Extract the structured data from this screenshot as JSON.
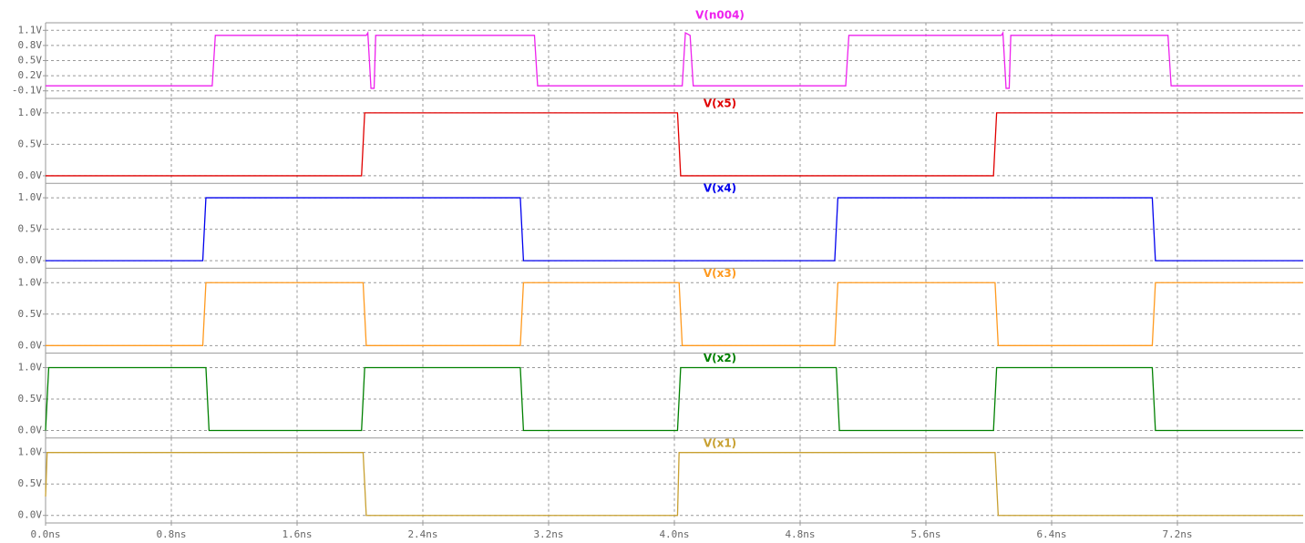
{
  "chart_data": [
    {
      "type": "line",
      "title": "V(n004)",
      "ylim": [
        -0.25,
        1.25
      ],
      "yticks": [
        {
          "value": 1.1,
          "label": "1.1V"
        },
        {
          "value": 0.8,
          "label": "0.8V"
        },
        {
          "value": 0.5,
          "label": "0.5V"
        },
        {
          "value": 0.2,
          "label": "0.2V"
        },
        {
          "value": -0.1,
          "label": "-0.1V"
        }
      ],
      "grid": true,
      "series": [
        {
          "name": "V(n004)",
          "color": "#ee22ee",
          "x": [
            0,
            1.06,
            1.08,
            2.04,
            2.05,
            2.07,
            2.09,
            2.1,
            3.11,
            3.13,
            4.05,
            4.07,
            4.1,
            4.12,
            5.09,
            5.11,
            6.08,
            6.09,
            6.11,
            6.13,
            6.14,
            7.14,
            7.16,
            8.0
          ],
          "values": [
            0,
            0,
            1,
            1,
            1.05,
            -0.05,
            -0.05,
            1,
            1,
            0,
            0,
            1.05,
            1,
            0,
            0,
            1,
            1,
            1.05,
            -0.05,
            -0.05,
            1,
            1,
            0,
            0
          ]
        }
      ]
    },
    {
      "type": "line",
      "title": "V(x5)",
      "ylim": [
        -0.12,
        1.23
      ],
      "yticks": [
        {
          "value": 1,
          "label": "1.0V"
        },
        {
          "value": 0.5,
          "label": "0.5V"
        },
        {
          "value": 0,
          "label": "0.0V"
        }
      ],
      "grid": true,
      "series": [
        {
          "name": "V(x5)",
          "color": "#e00000",
          "x": [
            0,
            2.01,
            2.03,
            4.02,
            4.04,
            6.03,
            6.05,
            8.0
          ],
          "values": [
            0,
            0,
            1,
            1,
            0,
            0,
            1,
            1
          ]
        }
      ]
    },
    {
      "type": "line",
      "title": "V(x4)",
      "ylim": [
        -0.12,
        1.23
      ],
      "yticks": [
        {
          "value": 1,
          "label": "1.0V"
        },
        {
          "value": 0.5,
          "label": "0.5V"
        },
        {
          "value": 0,
          "label": "0.0V"
        }
      ],
      "grid": true,
      "series": [
        {
          "name": "V(x4)",
          "color": "#0000ee",
          "x": [
            0,
            1.0,
            1.02,
            3.02,
            3.04,
            5.02,
            5.04,
            7.04,
            7.06,
            8.0
          ],
          "values": [
            0,
            0,
            1,
            1,
            0,
            0,
            1,
            1,
            0,
            0
          ]
        }
      ]
    },
    {
      "type": "line",
      "title": "V(x3)",
      "ylim": [
        -0.12,
        1.23
      ],
      "yticks": [
        {
          "value": 1,
          "label": "1.0V"
        },
        {
          "value": 0.5,
          "label": "0.5V"
        },
        {
          "value": 0,
          "label": "0.0V"
        }
      ],
      "grid": true,
      "series": [
        {
          "name": "V(x3)",
          "color": "#ff9a1f",
          "x": [
            0,
            1.0,
            1.02,
            2.02,
            2.04,
            3.02,
            3.04,
            4.03,
            4.05,
            5.02,
            5.04,
            6.04,
            6.06,
            7.04,
            7.06,
            8.0
          ],
          "values": [
            0,
            0,
            1,
            1,
            0,
            0,
            1,
            1,
            0,
            0,
            1,
            1,
            0,
            0,
            1,
            1
          ]
        }
      ]
    },
    {
      "type": "line",
      "title": "V(x2)",
      "ylim": [
        -0.12,
        1.23
      ],
      "yticks": [
        {
          "value": 1,
          "label": "1.0V"
        },
        {
          "value": 0.5,
          "label": "0.5V"
        },
        {
          "value": 0,
          "label": "0.0V"
        }
      ],
      "grid": true,
      "series": [
        {
          "name": "V(x2)",
          "color": "#008000",
          "x": [
            0,
            0.02,
            1.02,
            1.04,
            2.01,
            2.03,
            3.02,
            3.04,
            4.02,
            4.04,
            5.03,
            5.05,
            6.03,
            6.05,
            7.04,
            7.06,
            8.0
          ],
          "values": [
            0,
            1,
            1,
            0,
            0,
            1,
            1,
            0,
            0,
            1,
            1,
            0,
            0,
            1,
            1,
            0,
            0
          ]
        }
      ]
    },
    {
      "type": "line",
      "title": "V(x1)",
      "ylim": [
        -0.12,
        1.23
      ],
      "yticks": [
        {
          "value": 1,
          "label": "1.0V"
        },
        {
          "value": 0.5,
          "label": "0.5V"
        },
        {
          "value": 0,
          "label": "0.0V"
        }
      ],
      "grid": true,
      "xlim": [
        0,
        8.0
      ],
      "xticks": [
        {
          "value": 0,
          "label": "0.0ns"
        },
        {
          "value": 0.8,
          "label": "0.8ns"
        },
        {
          "value": 1.6,
          "label": "1.6ns"
        },
        {
          "value": 2.4,
          "label": "2.4ns"
        },
        {
          "value": 3.2,
          "label": "3.2ns"
        },
        {
          "value": 4.0,
          "label": "4.0ns"
        },
        {
          "value": 4.8,
          "label": "4.8ns"
        },
        {
          "value": 5.6,
          "label": "5.6ns"
        },
        {
          "value": 6.4,
          "label": "6.4ns"
        },
        {
          "value": 7.2,
          "label": "7.2ns"
        }
      ],
      "series": [
        {
          "name": "V(x1)",
          "color": "#c8a030",
          "x": [
            0,
            0.01,
            2.02,
            2.04,
            4.02,
            4.03,
            6.04,
            6.06,
            8.0
          ],
          "values": [
            0.3,
            1,
            1,
            0,
            0,
            1,
            1,
            0,
            0
          ]
        }
      ]
    }
  ]
}
